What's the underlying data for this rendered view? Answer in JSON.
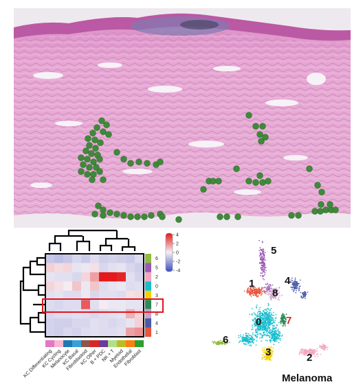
{
  "panel_title": "Melanoma",
  "heatmap": {
    "rows": [
      "6",
      "5",
      "2",
      "0",
      "3",
      "7",
      "8",
      "4",
      "1"
    ],
    "columns": [
      "KC Differentiating",
      "KC Cycling",
      "Melanocyte",
      "KC Basal",
      "Fibroblastoid",
      "KC Other",
      "B + PDC",
      "NK + T",
      "Myeloid",
      "Endothelial",
      "Fibroblast"
    ],
    "highlight_row": "7",
    "colorbar": {
      "ticks": [
        "4",
        "2",
        "0",
        "-2",
        "-4"
      ],
      "colors": {
        "high": "#e31a1c",
        "mid": "#f5f0f5",
        "low": "#3b4cc0"
      }
    },
    "row_colors": [
      "#8fbc3a",
      "#9b59b6",
      "#f4a6c0",
      "#17becf",
      "#f2d200",
      "#2e8b57",
      "#c8a2c8",
      "#4a5aa8",
      "#e8553c"
    ],
    "column_colors": [
      "#e377c2",
      "#f7b6d2",
      "#1f77b4",
      "#3a9fd8",
      "#8c564b",
      "#d62728",
      "#6a3d9a",
      "#b2df8a",
      "#bcbd22",
      "#ff7f0e",
      "#2ca02c"
    ],
    "values": [
      [
        -1.0,
        -1.2,
        -1.0,
        -0.6,
        -0.9,
        -0.5,
        -0.8,
        -0.7,
        -0.8,
        -0.9,
        -0.5
      ],
      [
        0.6,
        0.4,
        0.5,
        -0.3,
        -0.2,
        0.3,
        -0.6,
        -0.4,
        -0.3,
        -0.6,
        -0.8
      ],
      [
        -0.3,
        -0.4,
        -0.4,
        -0.6,
        0.5,
        1.5,
        4.0,
        4.0,
        3.8,
        -0.4,
        -0.7
      ],
      [
        0.5,
        0.3,
        0.1,
        0.8,
        -0.2,
        0.8,
        -0.5,
        -0.3,
        -0.2,
        -0.5,
        -0.4
      ],
      [
        -0.4,
        -0.3,
        -0.5,
        -0.5,
        -0.2,
        -0.6,
        -0.4,
        -0.4,
        -0.5,
        0.3,
        0.4
      ],
      [
        -0.5,
        -0.6,
        -0.5,
        -0.5,
        2.8,
        -0.4,
        0.1,
        -0.2,
        -0.2,
        -0.3,
        -0.3
      ],
      [
        -0.6,
        -0.5,
        -0.5,
        -0.4,
        -0.5,
        -0.6,
        -0.5,
        -0.4,
        -0.3,
        1.2,
        0.5
      ],
      [
        -0.7,
        -0.8,
        -0.8,
        -0.6,
        -0.6,
        -0.4,
        -0.5,
        -0.6,
        -0.5,
        -0.3,
        0.6
      ],
      [
        -0.7,
        -0.8,
        -0.6,
        -0.7,
        -0.5,
        -0.4,
        -0.5,
        -0.5,
        -0.4,
        1.5,
        1.8
      ]
    ]
  },
  "umap": {
    "clusters": [
      {
        "label": "5",
        "color": "#9b59b6"
      },
      {
        "label": "1",
        "color": "#e8553c"
      },
      {
        "label": "4",
        "color": "#4a5aa8"
      },
      {
        "label": "8",
        "color": "#c8a2c8"
      },
      {
        "label": "0",
        "color": "#17becf"
      },
      {
        "label": "7",
        "color": "#2e8b57"
      },
      {
        "label": "6",
        "color": "#8fbc3a"
      },
      {
        "label": "3",
        "color": "#f2d200"
      },
      {
        "label": "2",
        "color": "#f4a6c0"
      }
    ]
  },
  "tissue": {
    "spot_color": "#3f8a3a"
  }
}
